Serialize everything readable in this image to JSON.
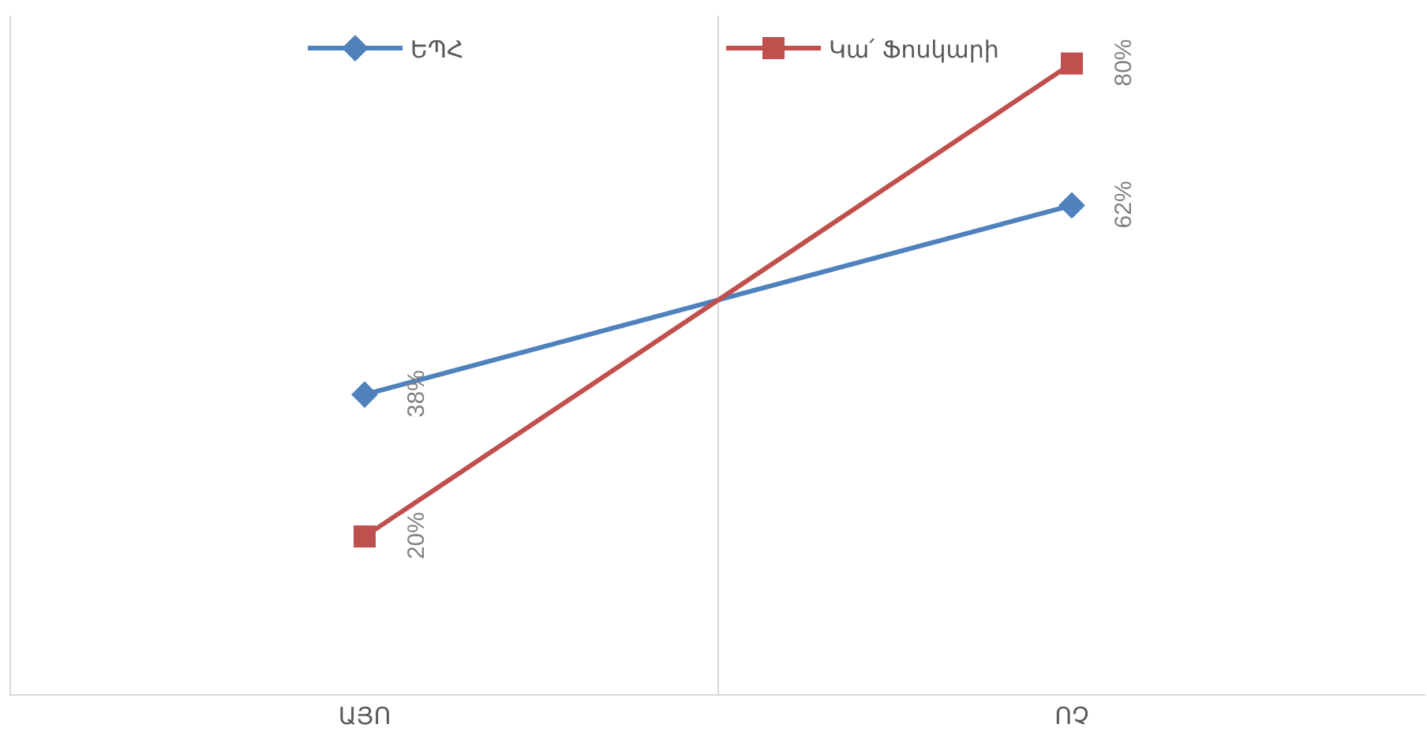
{
  "chart_data": {
    "type": "line",
    "categories": [
      "ԱՅՈ",
      "ՈՉ"
    ],
    "grid": "x",
    "legend": "top",
    "series": [
      {
        "name": "ԵՊՀ",
        "color": "#4f81bd",
        "marker": "diamond",
        "values": [
          38,
          62
        ],
        "value_labels": [
          "38%",
          "62%"
        ]
      },
      {
        "name": "Կա՛ Ֆոսկարի",
        "color": "#c0504d",
        "marker": "square",
        "values": [
          20,
          80
        ],
        "value_labels": [
          "20%",
          "80%"
        ]
      }
    ]
  }
}
